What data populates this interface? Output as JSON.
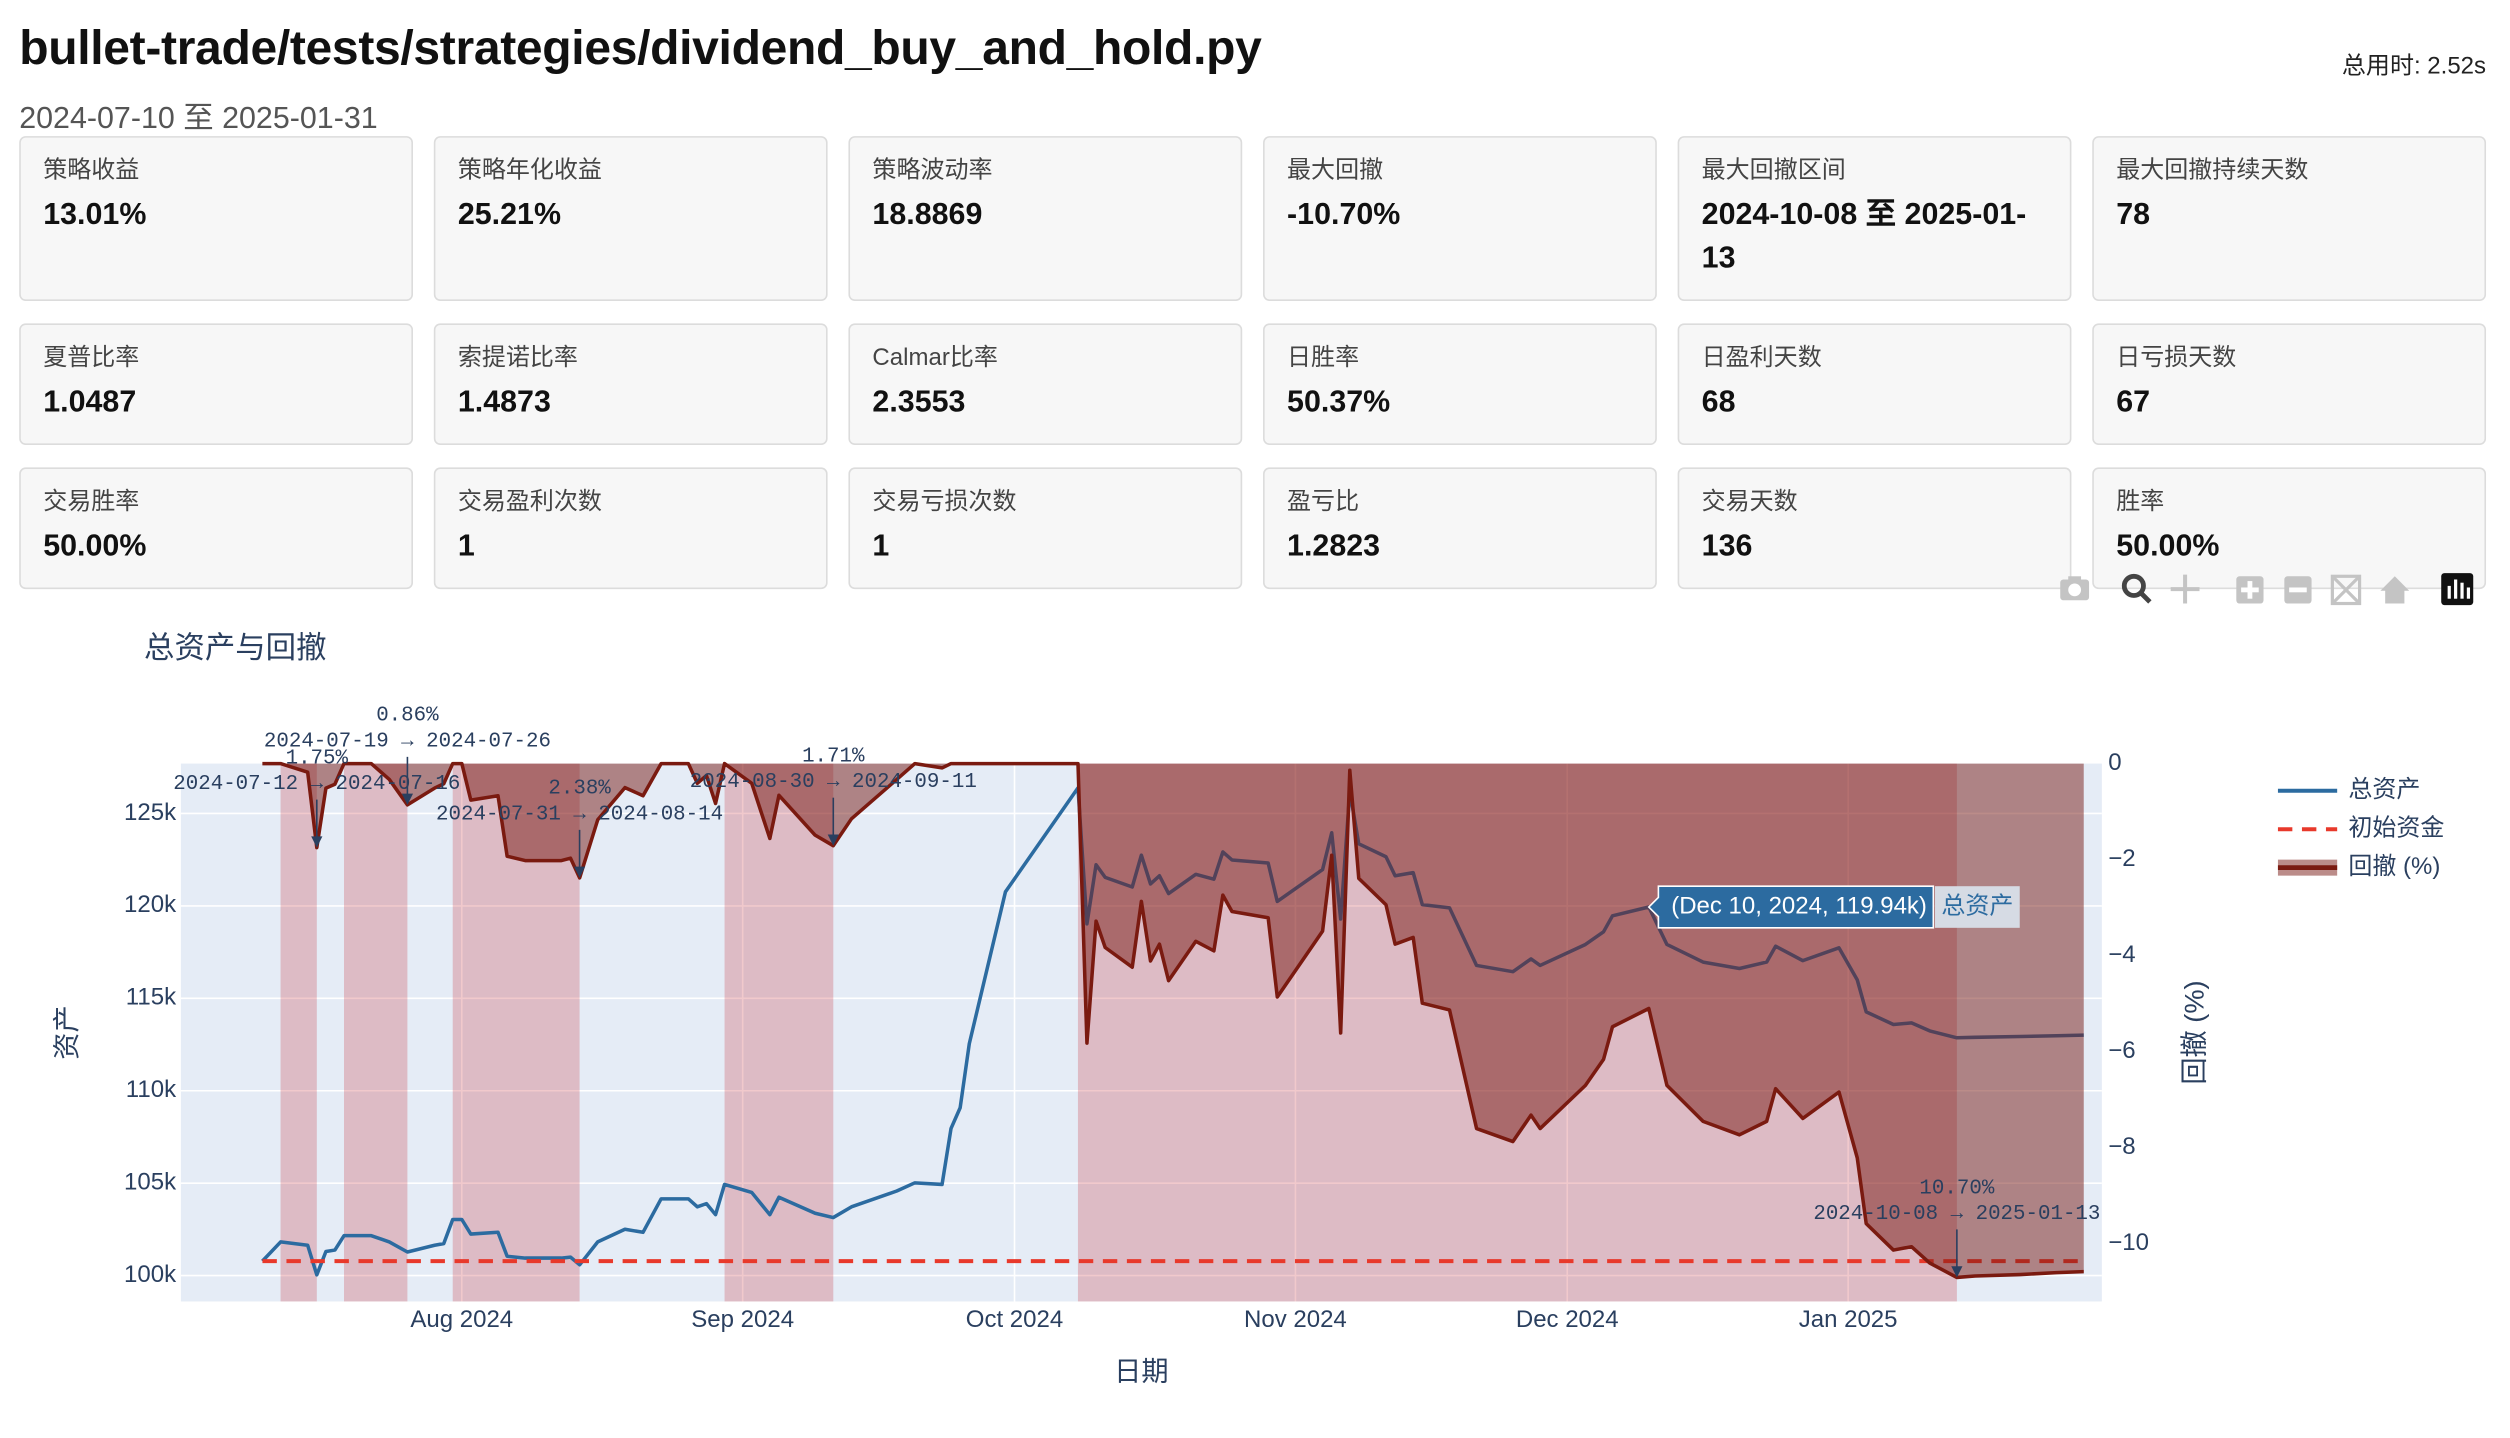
{
  "header": {
    "title": "bullet-trade/tests/strategies/dividend_buy_and_hold.py",
    "subtitle": "2024-07-10 至 2025-01-31",
    "elapsed": "总用时: 2.52s"
  },
  "metrics": [
    {
      "label": "策略收益",
      "value": "13.01%"
    },
    {
      "label": "策略年化收益",
      "value": "25.21%"
    },
    {
      "label": "策略波动率",
      "value": "18.8869"
    },
    {
      "label": "最大回撤",
      "value": "-10.70%"
    },
    {
      "label": "最大回撤区间",
      "value": "2024-10-08 至 2025-01-13"
    },
    {
      "label": "最大回撤持续天数",
      "value": "78"
    },
    {
      "label": "夏普比率",
      "value": "1.0487"
    },
    {
      "label": "索提诺比率",
      "value": "1.4873"
    },
    {
      "label": "Calmar比率",
      "value": "2.3553"
    },
    {
      "label": "日胜率",
      "value": "50.37%"
    },
    {
      "label": "日盈利天数",
      "value": "68"
    },
    {
      "label": "日亏损天数",
      "value": "67"
    },
    {
      "label": "交易胜率",
      "value": "50.00%"
    },
    {
      "label": "交易盈利次数",
      "value": "1"
    },
    {
      "label": "交易亏损次数",
      "value": "1"
    },
    {
      "label": "盈亏比",
      "value": "1.2823"
    },
    {
      "label": "交易天数",
      "value": "136"
    },
    {
      "label": "胜率",
      "value": "50.00%"
    }
  ],
  "chart_data": {
    "type": "line",
    "title": "总资产与回撤",
    "x_label": "日期",
    "y_label": "资产",
    "y2_label": "回撤 (%)",
    "x": [
      "2024-07-10",
      "2024-07-12",
      "2024-07-15",
      "2024-07-16",
      "2024-07-17",
      "2024-07-18",
      "2024-07-19",
      "2024-07-22",
      "2024-07-24",
      "2024-07-26",
      "2024-07-29",
      "2024-07-30",
      "2024-07-31",
      "2024-08-01",
      "2024-08-02",
      "2024-08-05",
      "2024-08-06",
      "2024-08-08",
      "2024-08-12",
      "2024-08-13",
      "2024-08-14",
      "2024-08-16",
      "2024-08-19",
      "2024-08-21",
      "2024-08-23",
      "2024-08-26",
      "2024-08-27",
      "2024-08-28",
      "2024-08-29",
      "2024-08-30",
      "2024-09-02",
      "2024-09-04",
      "2024-09-05",
      "2024-09-09",
      "2024-09-11",
      "2024-09-13",
      "2024-09-18",
      "2024-09-20",
      "2024-09-23",
      "2024-09-24",
      "2024-09-25",
      "2024-09-26",
      "2024-09-30",
      "2024-10-08",
      "2024-10-09",
      "2024-10-10",
      "2024-10-11",
      "2024-10-14",
      "2024-10-15",
      "2024-10-16",
      "2024-10-17",
      "2024-10-18",
      "2024-10-21",
      "2024-10-23",
      "2024-10-24",
      "2024-10-25",
      "2024-10-29",
      "2024-10-30",
      "2024-11-04",
      "2024-11-05",
      "2024-11-06",
      "2024-11-07",
      "2024-11-08",
      "2024-11-11",
      "2024-11-12",
      "2024-11-14",
      "2024-11-15",
      "2024-11-18",
      "2024-11-21",
      "2024-11-25",
      "2024-11-27",
      "2024-11-28",
      "2024-12-03",
      "2024-12-05",
      "2024-12-06",
      "2024-12-10",
      "2024-12-12",
      "2024-12-16",
      "2024-12-20",
      "2024-12-23",
      "2024-12-24",
      "2024-12-26",
      "2024-12-27",
      "2024-12-31",
      "2025-01-02",
      "2025-01-03",
      "2025-01-06",
      "2025-01-08",
      "2025-01-10",
      "2025-01-13",
      "2025-01-15",
      "2025-01-20",
      "2025-01-24",
      "2025-01-27"
    ],
    "series": [
      {
        "name": "总资产",
        "color": "#2c6ba0",
        "values": [
          100780,
          101820,
          101640,
          100040,
          101300,
          101380,
          102160,
          102160,
          101820,
          101280,
          101640,
          101730,
          103030,
          103030,
          102250,
          102340,
          101040,
          100950,
          100950,
          101000,
          100580,
          101820,
          102510,
          102340,
          104150,
          104150,
          103720,
          103890,
          103290,
          104930,
          104500,
          103290,
          104240,
          103370,
          103140,
          103720,
          104580,
          105020,
          104930,
          107960,
          109080,
          112540,
          120760,
          126380,
          119030,
          122230,
          121540,
          121020,
          122750,
          121190,
          121630,
          120670,
          121710,
          121450,
          122920,
          122490,
          122320,
          120240,
          121970,
          123960,
          119290,
          126200,
          123360,
          122660,
          121630,
          121800,
          120070,
          119900,
          116780,
          116440,
          117130,
          116780,
          117910,
          118600,
          119460,
          119940,
          117910,
          116960,
          116610,
          116960,
          117820,
          117300,
          117040,
          117730,
          116000,
          114270,
          113580,
          113670,
          113240,
          112860,
          112890,
          112930,
          112980,
          113010
        ]
      },
      {
        "name": "初始资金",
        "color": "#e8392b",
        "dash": true,
        "value": 100780
      },
      {
        "name": "回撤 (%)",
        "color": "#7a1a10",
        "axis": "y2",
        "fill": true,
        "values": [
          0,
          0,
          -0.18,
          -1.75,
          -0.51,
          -0.43,
          0,
          0,
          -0.33,
          -0.86,
          -0.51,
          -0.42,
          0,
          0,
          -0.76,
          -0.67,
          -1.93,
          -2.02,
          -2.02,
          -1.97,
          -2.38,
          -1.17,
          -0.5,
          -0.67,
          0,
          0,
          -0.41,
          -0.25,
          -0.83,
          0,
          -0.41,
          -1.56,
          -0.66,
          -1.49,
          -1.71,
          -1.15,
          -0.33,
          0,
          -0.09,
          0,
          0,
          0,
          0,
          0,
          -5.82,
          -3.28,
          -3.83,
          -4.24,
          -2.87,
          -4.11,
          -3.76,
          -4.52,
          -3.7,
          -3.9,
          -2.74,
          -3.08,
          -3.21,
          -4.86,
          -3.49,
          -1.91,
          -5.61,
          -0.14,
          -2.39,
          -2.94,
          -3.76,
          -3.62,
          -4.99,
          -5.13,
          -7.6,
          -7.87,
          -7.32,
          -7.6,
          -6.7,
          -6.16,
          -5.48,
          -5.1,
          -6.7,
          -7.45,
          -7.73,
          -7.45,
          -6.77,
          -7.18,
          -7.39,
          -6.84,
          -8.21,
          -9.58,
          -10.13,
          -10.06,
          -10.4,
          -10.7,
          -10.67,
          -10.64,
          -10.6,
          -10.58
        ]
      }
    ],
    "xlim": [
      "2024-07-01",
      "2025-01-29"
    ],
    "xticks": [
      {
        "value": "2024-08-01",
        "label": "Aug 2024"
      },
      {
        "value": "2024-09-01",
        "label": "Sep 2024"
      },
      {
        "value": "2024-10-01",
        "label": "Oct 2024"
      },
      {
        "value": "2024-11-01",
        "label": "Nov 2024"
      },
      {
        "value": "2024-12-01",
        "label": "Dec 2024"
      },
      {
        "value": "2025-01-01",
        "label": "Jan 2025"
      }
    ],
    "ylim": [
      98600,
      127700
    ],
    "yticks": [
      {
        "value": 100000,
        "label": "100k"
      },
      {
        "value": 105000,
        "label": "105k"
      },
      {
        "value": 110000,
        "label": "110k"
      },
      {
        "value": 115000,
        "label": "115k"
      },
      {
        "value": 120000,
        "label": "120k"
      },
      {
        "value": 125000,
        "label": "125k"
      }
    ],
    "y2lim": [
      -11.2,
      0
    ],
    "y2ticks": [
      0,
      {
        "value": -2,
        "label": "−2"
      },
      {
        "value": -4,
        "label": "−4"
      },
      {
        "value": -6,
        "label": "−6"
      },
      {
        "value": -8,
        "label": "−8"
      },
      {
        "value": -10,
        "label": "−10"
      }
    ],
    "grid": true,
    "legend": "right",
    "drawdown_periods": [
      {
        "start": "2024-07-12",
        "end": "2024-07-16"
      },
      {
        "start": "2024-07-19",
        "end": "2024-07-26"
      },
      {
        "start": "2024-07-31",
        "end": "2024-08-14"
      },
      {
        "start": "2024-08-30",
        "end": "2024-09-11"
      },
      {
        "start": "2024-10-08",
        "end": "2025-01-13"
      }
    ],
    "annotations": [
      {
        "x": "2024-07-16",
        "y": -1.75,
        "depth": "1.75%",
        "period": "2024-07-12 → 2024-07-16"
      },
      {
        "x": "2024-07-26",
        "y": -0.86,
        "depth": "0.86%",
        "period": "2024-07-19 → 2024-07-26"
      },
      {
        "x": "2024-08-14",
        "y": -2.38,
        "depth": "2.38%",
        "period": "2024-07-31 → 2024-08-14"
      },
      {
        "x": "2024-09-11",
        "y": -1.71,
        "depth": "1.71%",
        "period": "2024-08-30 → 2024-09-11"
      },
      {
        "x": "2025-01-13",
        "y": -10.7,
        "depth": "10.70%",
        "period": "2024-10-08 → 2025-01-13"
      }
    ],
    "hover": {
      "x": "2024-12-10",
      "value": 119940,
      "label": "(Dec 10, 2024, 119.94k)"
    }
  }
}
